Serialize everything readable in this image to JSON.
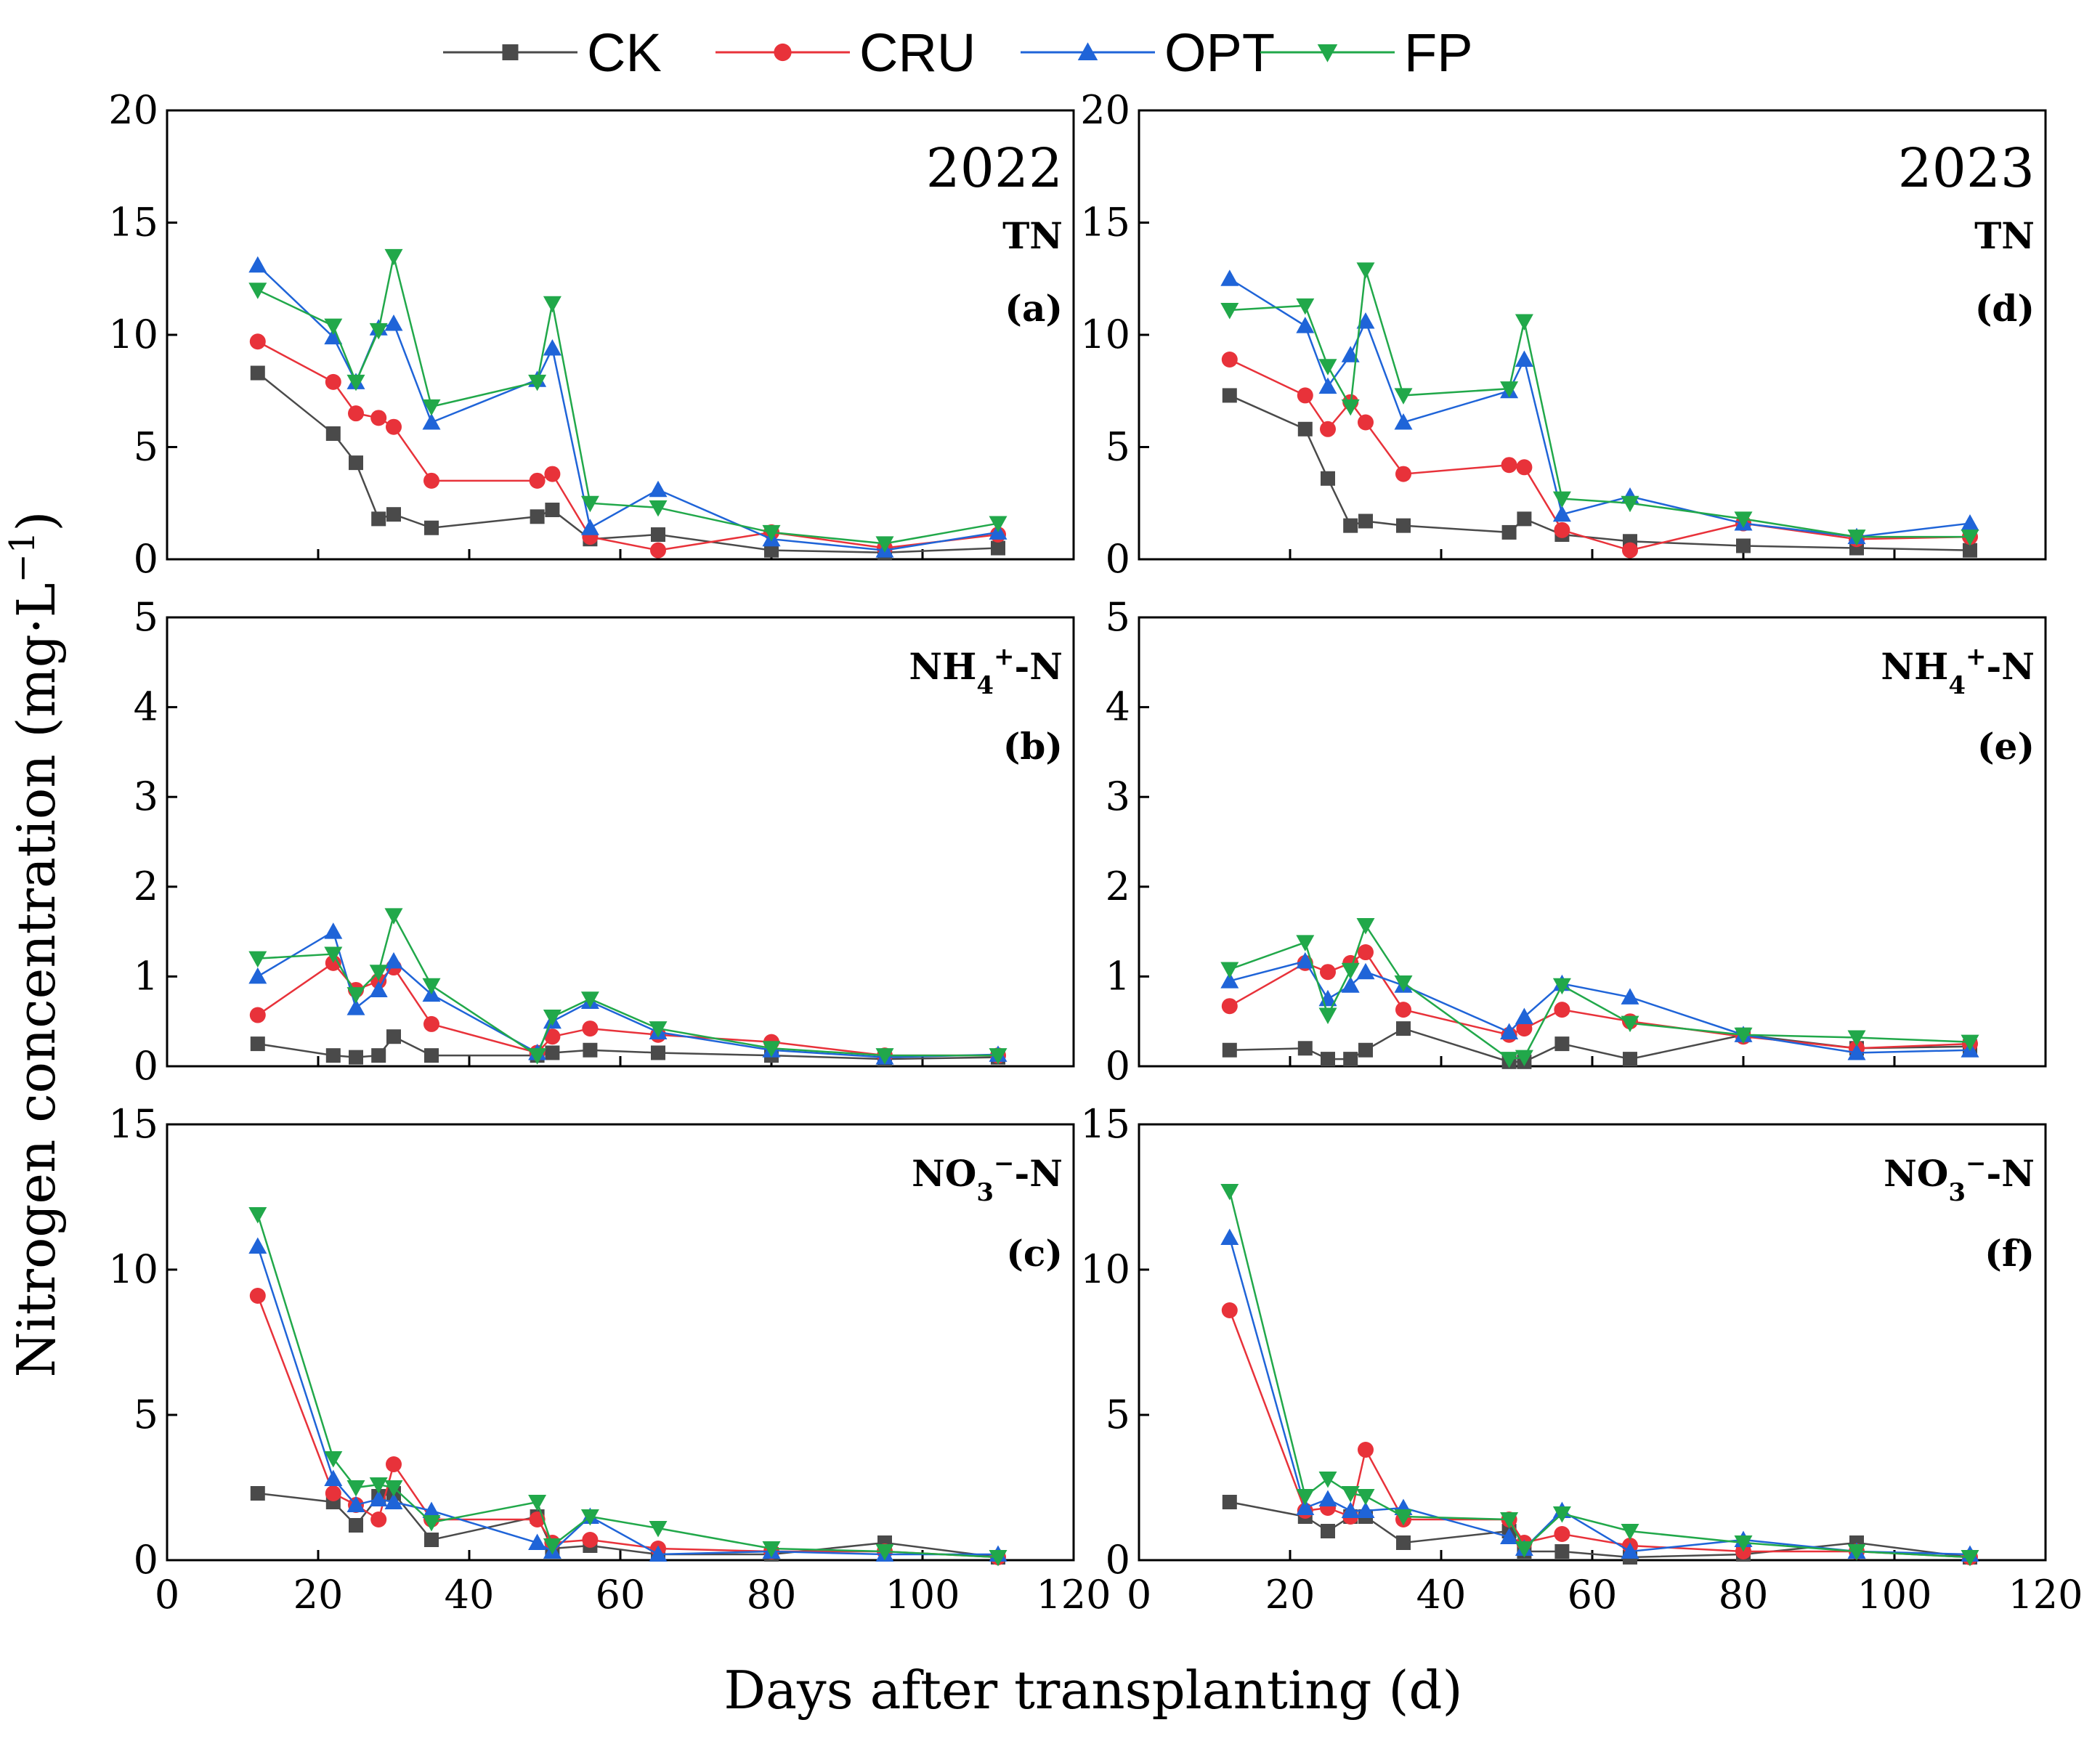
{
  "chart_data": {
    "type": "line",
    "ylabel_parts": {
      "base": "Nitrogen concentration (mg·L",
      "sup": "−1",
      "end": ")"
    },
    "xlabel": "Days after transplanting (d)",
    "xlim": [
      0,
      120
    ],
    "xticks": [
      0,
      20,
      40,
      60,
      80,
      100,
      120
    ],
    "series_meta": [
      {
        "name": "CK",
        "color": "#4a4a4a",
        "marker": "square"
      },
      {
        "name": "CRU",
        "color": "#e8323a",
        "marker": "circle"
      },
      {
        "name": "OPT",
        "color": "#1f64d8",
        "marker": "triangle-up"
      },
      {
        "name": "FP",
        "color": "#21a84a",
        "marker": "triangle-down"
      }
    ],
    "panels": [
      {
        "id": "a",
        "tag": "(a)",
        "year": "2022",
        "label_parts": [
          "TN"
        ],
        "label_kind": "plain",
        "ylim": [
          0,
          20
        ],
        "yticks": [
          0,
          5,
          10,
          15,
          20
        ],
        "x": [
          12,
          22,
          25,
          28,
          30,
          35,
          49,
          51,
          56,
          65,
          80,
          95,
          110
        ],
        "series": [
          {
            "name": "CK",
            "values": [
              8.3,
              5.6,
              4.3,
              1.8,
              2.0,
              1.4,
              1.9,
              2.2,
              0.9,
              1.1,
              0.4,
              0.3,
              0.5
            ]
          },
          {
            "name": "CRU",
            "values": [
              9.7,
              7.9,
              6.5,
              6.3,
              5.9,
              3.5,
              3.5,
              3.8,
              1.0,
              0.4,
              1.2,
              0.5,
              1.1
            ]
          },
          {
            "name": "OPT",
            "values": [
              13.1,
              9.9,
              7.9,
              10.3,
              10.5,
              6.1,
              8.0,
              9.4,
              1.4,
              3.1,
              0.9,
              0.4,
              1.2
            ]
          },
          {
            "name": "FP",
            "values": [
              12.0,
              10.4,
              7.9,
              10.2,
              13.5,
              6.8,
              7.9,
              11.4,
              2.5,
              2.3,
              1.2,
              0.7,
              1.6
            ]
          }
        ]
      },
      {
        "id": "d",
        "tag": "(d)",
        "year": "2023",
        "label_parts": [
          "TN"
        ],
        "label_kind": "plain",
        "ylim": [
          0,
          20
        ],
        "yticks": [
          0,
          5,
          10,
          15,
          20
        ],
        "x": [
          12,
          22,
          25,
          28,
          30,
          35,
          49,
          51,
          56,
          65,
          80,
          95,
          110
        ],
        "series": [
          {
            "name": "CK",
            "values": [
              7.3,
              5.8,
              3.6,
              1.5,
              1.7,
              1.5,
              1.2,
              1.8,
              1.1,
              0.8,
              0.6,
              0.5,
              0.4
            ]
          },
          {
            "name": "CRU",
            "values": [
              8.9,
              7.3,
              5.8,
              7.0,
              6.1,
              3.8,
              4.2,
              4.1,
              1.3,
              0.4,
              1.6,
              0.9,
              1.0
            ]
          },
          {
            "name": "OPT",
            "values": [
              12.5,
              10.4,
              7.7,
              9.1,
              10.6,
              6.1,
              7.5,
              8.9,
              2.0,
              2.8,
              1.6,
              1.0,
              1.6
            ]
          },
          {
            "name": "FP",
            "values": [
              11.1,
              11.3,
              8.6,
              6.8,
              12.9,
              7.3,
              7.6,
              10.6,
              2.7,
              2.5,
              1.8,
              1.0,
              1.0
            ]
          }
        ]
      },
      {
        "id": "b",
        "tag": "(b)",
        "year": "",
        "label_parts": [
          "NH",
          "4",
          "+",
          "-N"
        ],
        "label_kind": "nh4",
        "ylim": [
          0,
          5
        ],
        "yticks": [
          0,
          1,
          2,
          3,
          4,
          5
        ],
        "x": [
          12,
          22,
          25,
          28,
          30,
          35,
          49,
          51,
          56,
          65,
          80,
          95,
          110
        ],
        "series": [
          {
            "name": "CK",
            "values": [
              0.25,
              0.12,
              0.1,
              0.12,
              0.33,
              0.12,
              0.12,
              0.15,
              0.18,
              0.15,
              0.12,
              0.08,
              0.1
            ]
          },
          {
            "name": "CRU",
            "values": [
              0.57,
              1.15,
              0.85,
              0.95,
              1.1,
              0.47,
              0.15,
              0.33,
              0.42,
              0.35,
              0.27,
              0.12,
              0.12
            ]
          },
          {
            "name": "OPT",
            "values": [
              1.0,
              1.5,
              0.65,
              0.85,
              1.17,
              0.8,
              0.15,
              0.5,
              0.72,
              0.38,
              0.18,
              0.1,
              0.13
            ]
          },
          {
            "name": "FP",
            "values": [
              1.2,
              1.25,
              0.8,
              1.05,
              1.68,
              0.9,
              0.12,
              0.55,
              0.75,
              0.42,
              0.2,
              0.12,
              0.12
            ]
          }
        ]
      },
      {
        "id": "e",
        "tag": "(e)",
        "year": "",
        "label_parts": [
          "NH",
          "4",
          "+",
          "-N"
        ],
        "label_kind": "nh4",
        "ylim": [
          0,
          5
        ],
        "yticks": [
          0,
          1,
          2,
          3,
          4,
          5
        ],
        "x": [
          12,
          22,
          25,
          28,
          30,
          35,
          49,
          51,
          56,
          65,
          80,
          95,
          110
        ],
        "series": [
          {
            "name": "CK",
            "values": [
              0.18,
              0.2,
              0.08,
              0.08,
              0.18,
              0.42,
              0.05,
              0.05,
              0.25,
              0.08,
              0.35,
              0.2,
              0.22
            ]
          },
          {
            "name": "CRU",
            "values": [
              0.67,
              1.15,
              1.05,
              1.15,
              1.27,
              0.63,
              0.35,
              0.42,
              0.63,
              0.5,
              0.33,
              0.2,
              0.25
            ]
          },
          {
            "name": "OPT",
            "values": [
              0.95,
              1.17,
              0.75,
              0.9,
              1.05,
              0.9,
              0.38,
              0.55,
              0.92,
              0.77,
              0.35,
              0.15,
              0.18
            ]
          },
          {
            "name": "FP",
            "values": [
              1.08,
              1.38,
              0.57,
              1.07,
              1.57,
              0.93,
              0.08,
              0.1,
              0.9,
              0.48,
              0.35,
              0.32,
              0.27
            ]
          }
        ]
      },
      {
        "id": "c",
        "tag": "(c)",
        "year": "",
        "label_parts": [
          "NO",
          "3",
          "−",
          "-N"
        ],
        "label_kind": "no3",
        "ylim": [
          0,
          15
        ],
        "yticks": [
          0,
          5,
          10,
          15
        ],
        "x": [
          12,
          22,
          25,
          28,
          30,
          35,
          49,
          51,
          56,
          65,
          80,
          95,
          110
        ],
        "series": [
          {
            "name": "CK",
            "values": [
              2.3,
              2.0,
              1.2,
              2.2,
              2.3,
              0.7,
              1.5,
              0.4,
              0.5,
              0.2,
              0.2,
              0.6,
              0.1
            ]
          },
          {
            "name": "CRU",
            "values": [
              9.1,
              2.3,
              1.9,
              1.4,
              3.3,
              1.4,
              1.4,
              0.6,
              0.7,
              0.4,
              0.3,
              0.3,
              0.1
            ]
          },
          {
            "name": "OPT",
            "values": [
              10.8,
              2.8,
              1.9,
              2.1,
              2.0,
              1.7,
              0.6,
              0.3,
              1.5,
              0.2,
              0.3,
              0.2,
              0.2
            ]
          },
          {
            "name": "FP",
            "values": [
              11.9,
              3.5,
              2.5,
              2.6,
              2.5,
              1.3,
              2.0,
              0.5,
              1.5,
              1.1,
              0.4,
              0.3,
              0.1
            ]
          }
        ]
      },
      {
        "id": "f",
        "tag": "(f)",
        "year": "",
        "label_parts": [
          "NO",
          "3",
          "−",
          "-N"
        ],
        "label_kind": "no3",
        "ylim": [
          0,
          15
        ],
        "yticks": [
          0,
          5,
          10,
          15
        ],
        "x": [
          12,
          22,
          25,
          28,
          30,
          35,
          49,
          51,
          56,
          65,
          80,
          95,
          110
        ],
        "series": [
          {
            "name": "CK",
            "values": [
              2.0,
              1.5,
              1.0,
              1.5,
              1.5,
              0.6,
              1.0,
              0.3,
              0.3,
              0.1,
              0.2,
              0.6,
              0.1
            ]
          },
          {
            "name": "CRU",
            "values": [
              8.6,
              1.7,
              1.8,
              1.5,
              3.8,
              1.4,
              1.4,
              0.6,
              0.9,
              0.5,
              0.3,
              0.3,
              0.1
            ]
          },
          {
            "name": "OPT",
            "values": [
              11.1,
              1.8,
              2.1,
              1.7,
              1.7,
              1.8,
              0.8,
              0.4,
              1.7,
              0.3,
              0.7,
              0.3,
              0.2
            ]
          },
          {
            "name": "FP",
            "values": [
              12.7,
              2.2,
              2.8,
              2.3,
              2.2,
              1.5,
              1.4,
              0.4,
              1.6,
              1.0,
              0.6,
              0.3,
              0.1
            ]
          }
        ]
      }
    ]
  }
}
